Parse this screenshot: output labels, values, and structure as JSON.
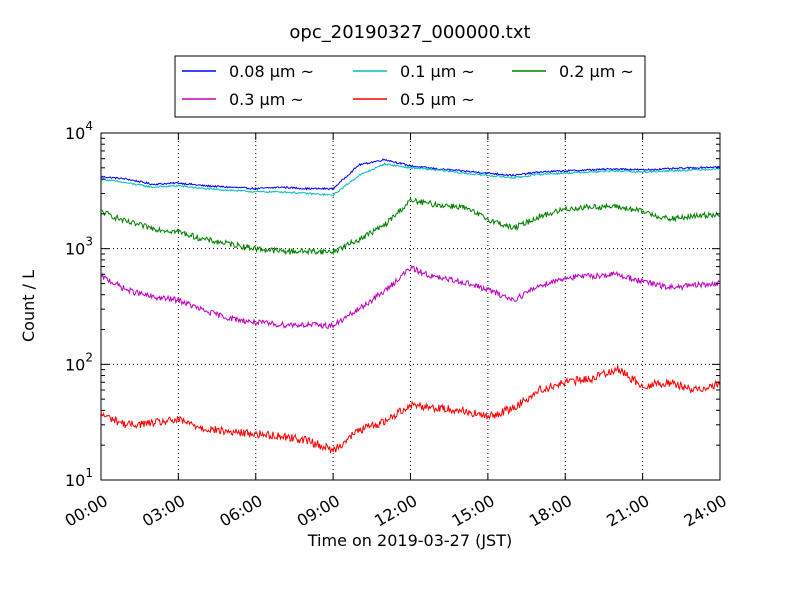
{
  "chart_data": {
    "type": "line",
    "title": "opc_20190327_000000.txt",
    "xlabel": "Time on 2019-03-27 (JST)",
    "ylabel": "Count / L",
    "yscale": "log",
    "ylim": [
      10,
      10000
    ],
    "xlim": [
      "2019-03-27 00:00",
      "2019-03-28 00:00"
    ],
    "x_ticks": [
      "00:00",
      "03:00",
      "06:00",
      "09:00",
      "12:00",
      "15:00",
      "18:00",
      "21:00",
      "24:00"
    ],
    "y_ticks": [
      {
        "value": 10,
        "base": "10",
        "exp": "1"
      },
      {
        "value": 100,
        "base": "10",
        "exp": "2"
      },
      {
        "value": 1000,
        "base": "10",
        "exp": "3"
      },
      {
        "value": 10000,
        "base": "10",
        "exp": "4"
      }
    ],
    "grid": true,
    "legend_position": "top-center (above plot)",
    "x": [
      "00:00",
      "01:00",
      "02:00",
      "03:00",
      "04:00",
      "05:00",
      "06:00",
      "07:00",
      "08:00",
      "09:00",
      "10:00",
      "11:00",
      "12:00",
      "13:00",
      "14:00",
      "15:00",
      "16:00",
      "17:00",
      "18:00",
      "19:00",
      "20:00",
      "21:00",
      "22:00",
      "23:00",
      "24:00"
    ],
    "series": [
      {
        "name": "0.08 μm ~",
        "color": "#0000ff",
        "values": [
          4200,
          4000,
          3600,
          3700,
          3500,
          3400,
          3300,
          3400,
          3300,
          3300,
          5300,
          5900,
          5200,
          4900,
          4700,
          4500,
          4300,
          4600,
          4700,
          4800,
          4900,
          4800,
          4900,
          5000,
          5100
        ]
      },
      {
        "name": "0.1 μm ~",
        "color": "#00bfbf",
        "values": [
          4000,
          3700,
          3400,
          3500,
          3300,
          3200,
          3100,
          3100,
          3000,
          2900,
          4300,
          5400,
          5000,
          4800,
          4500,
          4300,
          4100,
          4400,
          4500,
          4600,
          4700,
          4600,
          4700,
          4800,
          4900
        ]
      },
      {
        "name": "0.2 μm ~",
        "color": "#008000",
        "values": [
          2100,
          1700,
          1500,
          1400,
          1200,
          1100,
          1000,
          950,
          950,
          940,
          1200,
          1600,
          2600,
          2400,
          2300,
          1800,
          1500,
          1900,
          2200,
          2300,
          2300,
          2100,
          1800,
          1900,
          2000
        ]
      },
      {
        "name": "0.3 μm ~",
        "color": "#bf00bf",
        "values": [
          580,
          440,
          380,
          360,
          290,
          250,
          230,
          220,
          220,
          215,
          300,
          430,
          680,
          560,
          520,
          440,
          360,
          480,
          560,
          580,
          600,
          520,
          460,
          480,
          500
        ]
      },
      {
        "name": "0.5 μm ~",
        "color": "#ff0000",
        "values": [
          37,
          30,
          31,
          33,
          28,
          26,
          25,
          24,
          22,
          18,
          27,
          32,
          45,
          42,
          40,
          35,
          42,
          60,
          70,
          75,
          92,
          65,
          70,
          60,
          68
        ]
      }
    ]
  }
}
